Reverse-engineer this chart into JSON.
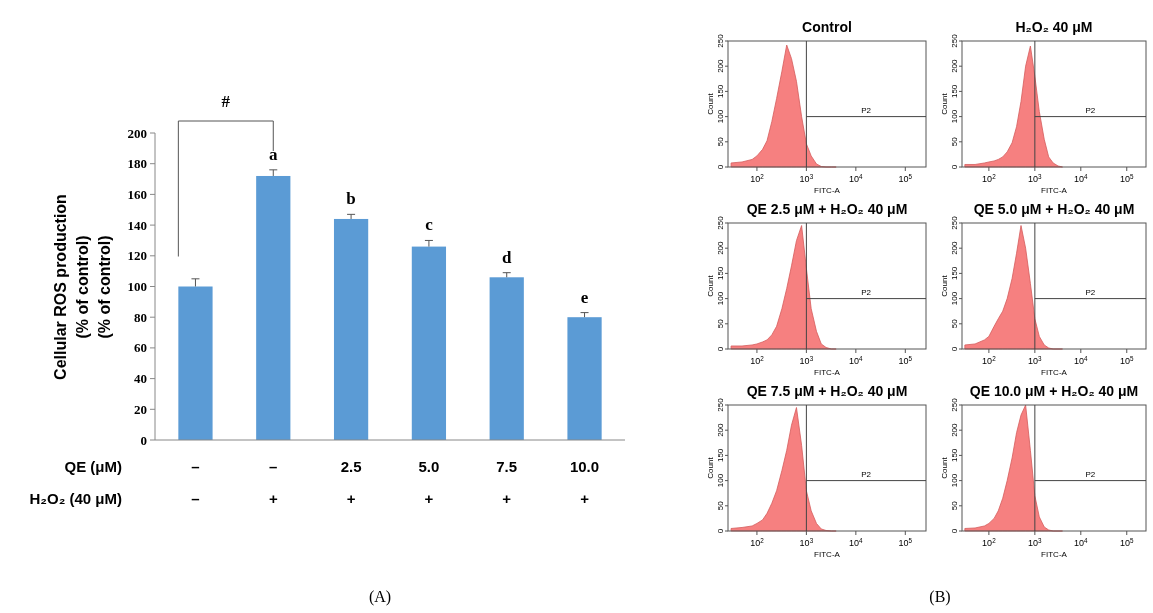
{
  "chart_data": [
    {
      "type": "bar",
      "categories": [
        "–\n–",
        "–\n+",
        "2.5\n+",
        "5.0\n+",
        "7.5\n+",
        "10.0\n+"
      ],
      "xlabel": "QE (μM)\nH₂O₂ (40 μM)",
      "ylabel": "Cellular ROS production\n(% of control)\n(% of control)",
      "values": [
        100,
        172,
        144,
        126,
        106,
        80
      ],
      "color": "#5b9bd5",
      "errors": [
        [
          100,
          105
        ],
        [
          172,
          176
        ],
        [
          144,
          147
        ],
        [
          126,
          130
        ],
        [
          106,
          109
        ],
        [
          80,
          83
        ]
      ],
      "value_labels": [
        null,
        "a",
        "b",
        "c",
        "d",
        "e"
      ],
      "ylim": [
        0,
        200
      ],
      "yticks": [
        0,
        20,
        40,
        60,
        80,
        100,
        120,
        140,
        160,
        180,
        200
      ],
      "annotations": [
        "#",
        "(A)"
      ]
    },
    {
      "type": "area",
      "title": "Control",
      "xlabel": "FITC-A",
      "ylabel": "Count",
      "log": "x",
      "x": [
        30,
        50,
        80,
        100,
        130,
        160,
        200,
        250,
        320,
        400,
        500,
        630,
        800,
        1000,
        1250,
        1600,
        2000,
        2500,
        3200,
        4000
      ],
      "series": [
        {
          "color": "#f46a6a",
          "values": [
            8,
            10,
            15,
            22,
            35,
            52,
            90,
            136,
            190,
            242,
            215,
            170,
            100,
            46,
            22,
            6,
            1,
            0,
            0,
            0
          ]
        }
      ],
      "xlim": [
        26,
        262144
      ],
      "xticks": [
        {
          "value": 100,
          "label": "10$^{2}$"
        },
        {
          "value": 1000,
          "label": "10$^{3}$"
        },
        {
          "value": 10000,
          "label": "10$^{4}$"
        },
        {
          "value": 100000,
          "label": "10$^{5}$"
        }
      ],
      "ylim": [
        0,
        250
      ],
      "yticks": [
        0,
        50,
        100,
        150,
        200,
        250
      ],
      "ref_lines": [
        {
          "axis": "x",
          "value": 1000
        },
        {
          "axis": "y",
          "value": 100,
          "label": "P2"
        }
      ],
      "annotations": [
        "(B)"
      ]
    },
    {
      "type": "area",
      "title": "H₂O₂ 40 μM",
      "xlabel": "FITC-A",
      "ylabel": "Count",
      "log": "x",
      "x": [
        30,
        50,
        80,
        100,
        130,
        160,
        200,
        250,
        320,
        400,
        500,
        630,
        800,
        1000,
        1250,
        1600,
        2000,
        2500,
        3200,
        4000
      ],
      "series": [
        {
          "color": "#f46a6a",
          "values": [
            5,
            5,
            8,
            10,
            12,
            15,
            20,
            30,
            48,
            80,
            130,
            200,
            240,
            180,
            110,
            55,
            20,
            8,
            2,
            0
          ]
        }
      ],
      "xlim": [
        26,
        262144
      ],
      "xticks": [
        {
          "value": 100,
          "label": "10$^{2}$"
        },
        {
          "value": 1000,
          "label": "10$^{3}$"
        },
        {
          "value": 10000,
          "label": "10$^{4}$"
        },
        {
          "value": 100000,
          "label": "10$^{5}$"
        }
      ],
      "ylim": [
        0,
        250
      ],
      "yticks": [
        0,
        50,
        100,
        150,
        200,
        250
      ],
      "ref_lines": [
        {
          "axis": "x",
          "value": 1000
        },
        {
          "axis": "y",
          "value": 100,
          "label": "P2"
        }
      ]
    },
    {
      "type": "area",
      "title": "QE 2.5 μM + H₂O₂ 40 μM",
      "xlabel": "FITC-A",
      "ylabel": "Count",
      "log": "x",
      "x": [
        30,
        50,
        80,
        100,
        130,
        160,
        200,
        250,
        320,
        400,
        500,
        630,
        800,
        1000,
        1250,
        1600,
        2000,
        2500,
        3200,
        4000
      ],
      "series": [
        {
          "color": "#f46a6a",
          "values": [
            6,
            6,
            8,
            10,
            14,
            18,
            28,
            45,
            80,
            120,
            165,
            215,
            245,
            160,
            80,
            35,
            10,
            3,
            0,
            0
          ]
        }
      ],
      "xlim": [
        26,
        262144
      ],
      "xticks": [
        {
          "value": 100,
          "label": "10$^{2}$"
        },
        {
          "value": 1000,
          "label": "10$^{3}$"
        },
        {
          "value": 10000,
          "label": "10$^{4}$"
        },
        {
          "value": 100000,
          "label": "10$^{5}$"
        }
      ],
      "ylim": [
        0,
        250
      ],
      "yticks": [
        0,
        50,
        100,
        150,
        200,
        250
      ],
      "ref_lines": [
        {
          "axis": "x",
          "value": 1000
        },
        {
          "axis": "y",
          "value": 100,
          "label": "P2"
        }
      ]
    },
    {
      "type": "area",
      "title": "QE 5.0 μM + H₂O₂ 40 μM",
      "xlabel": "FITC-A",
      "ylabel": "Count",
      "log": "x",
      "x": [
        30,
        50,
        80,
        100,
        130,
        160,
        200,
        250,
        320,
        400,
        500,
        630,
        800,
        1000,
        1250,
        1600,
        2000,
        2500,
        3200,
        4000
      ],
      "series": [
        {
          "color": "#f46a6a",
          "values": [
            8,
            10,
            18,
            25,
            45,
            60,
            75,
            100,
            140,
            190,
            245,
            200,
            130,
            60,
            25,
            8,
            2,
            0,
            0,
            0
          ]
        }
      ],
      "xlim": [
        26,
        262144
      ],
      "xticks": [
        {
          "value": 100,
          "label": "10$^{2}$"
        },
        {
          "value": 1000,
          "label": "10$^{3}$"
        },
        {
          "value": 10000,
          "label": "10$^{4}$"
        },
        {
          "value": 100000,
          "label": "10$^{5}$"
        }
      ],
      "ylim": [
        0,
        250
      ],
      "yticks": [
        0,
        50,
        100,
        150,
        200,
        250
      ],
      "ref_lines": [
        {
          "axis": "x",
          "value": 1000
        },
        {
          "axis": "y",
          "value": 100,
          "label": "P2"
        }
      ]
    },
    {
      "type": "area",
      "title": "QE 7.5 μM + H₂O₂ 40 μM",
      "xlabel": "FITC-A",
      "ylabel": "Count",
      "log": "x",
      "x": [
        30,
        50,
        80,
        100,
        130,
        160,
        200,
        250,
        320,
        400,
        500,
        630,
        800,
        1000,
        1250,
        1600,
        2000,
        2500,
        3200,
        4000
      ],
      "series": [
        {
          "color": "#f46a6a",
          "values": [
            5,
            7,
            10,
            15,
            22,
            35,
            55,
            80,
            120,
            160,
            210,
            245,
            170,
            80,
            40,
            15,
            4,
            1,
            0,
            0
          ]
        }
      ],
      "xlim": [
        26,
        262144
      ],
      "xticks": [
        {
          "value": 100,
          "label": "10$^{2}$"
        },
        {
          "value": 1000,
          "label": "10$^{3}$"
        },
        {
          "value": 10000,
          "label": "10$^{4}$"
        },
        {
          "value": 100000,
          "label": "10$^{5}$"
        }
      ],
      "ylim": [
        0,
        250
      ],
      "yticks": [
        0,
        50,
        100,
        150,
        200,
        250
      ],
      "ref_lines": [
        {
          "axis": "x",
          "value": 1000
        },
        {
          "axis": "y",
          "value": 100,
          "label": "P2"
        }
      ]
    },
    {
      "type": "area",
      "title": "QE 10.0 μM + H₂O₂ 40 μM",
      "xlabel": "FITC-A",
      "ylabel": "Count",
      "log": "x",
      "x": [
        30,
        50,
        80,
        100,
        130,
        160,
        200,
        250,
        320,
        400,
        500,
        630,
        800,
        1000,
        1250,
        1600,
        2000,
        2500,
        3200,
        4000
      ],
      "series": [
        {
          "color": "#f46a6a",
          "values": [
            5,
            6,
            10,
            15,
            25,
            40,
            65,
            100,
            145,
            195,
            230,
            250,
            160,
            70,
            28,
            8,
            2,
            0,
            0,
            0
          ]
        }
      ],
      "xlim": [
        26,
        262144
      ],
      "xticks": [
        {
          "value": 100,
          "label": "10$^{2}$"
        },
        {
          "value": 1000,
          "label": "10$^{3}$"
        },
        {
          "value": 10000,
          "label": "10$^{4}$"
        },
        {
          "value": 100000,
          "label": "10$^{5}$"
        }
      ],
      "ylim": [
        0,
        250
      ],
      "yticks": [
        0,
        50,
        100,
        150,
        200,
        250
      ],
      "ref_lines": [
        {
          "axis": "x",
          "value": 1000
        },
        {
          "axis": "y",
          "value": 100,
          "label": "P2"
        }
      ]
    }
  ]
}
